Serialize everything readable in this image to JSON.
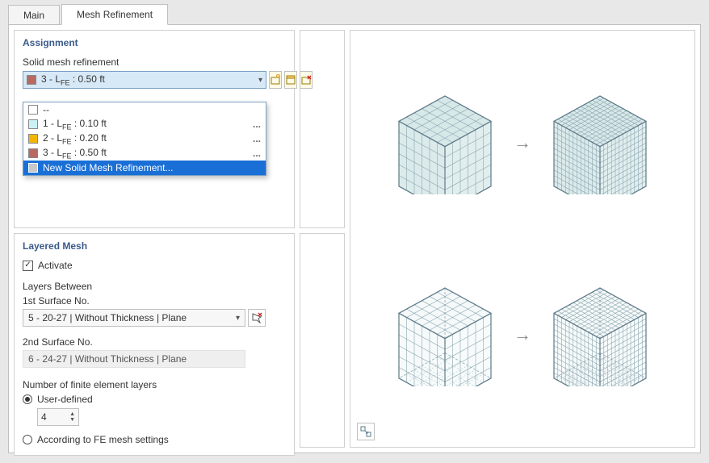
{
  "tabs": {
    "main": "Main",
    "mesh": "Mesh Refinement"
  },
  "assignment": {
    "title": "Assignment",
    "label": "Solid mesh refinement",
    "selected": {
      "text": "3 - L",
      "sub": "FE",
      "suffix": " : 0.50 ft",
      "swatch": "#b76a62"
    },
    "options": [
      {
        "text": "--",
        "swatch": "#ffffff",
        "dots": false
      },
      {
        "text": "1 - L",
        "sub": "FE",
        "suffix": " : 0.10 ft",
        "swatch": "#ccf1f4",
        "dots": true
      },
      {
        "text": "2 - L",
        "sub": "FE",
        "suffix": " : 0.20 ft",
        "swatch": "#f3b600",
        "dots": true
      },
      {
        "text": "3 - L",
        "sub": "FE",
        "suffix": " : 0.50 ft",
        "swatch": "#b76a62",
        "dots": true
      },
      {
        "text": "New Solid Mesh Refinement...",
        "swatch": "#c8c8c8",
        "highlight": true
      }
    ]
  },
  "layered": {
    "title": "Layered Mesh",
    "activate_label": "Activate",
    "activate_checked": true,
    "between_label": "Layers Between",
    "surf1_label": "1st Surface No.",
    "surf1_value": "5 - 20-27 | Without Thickness | Plane",
    "surf2_label": "2nd Surface No.",
    "surf2_value": "6 - 24-27 | Without Thickness | Plane",
    "layers_label": "Number of finite element layers",
    "radio_user": "User-defined",
    "radio_fe": "According to FE mesh settings",
    "radio_selected": "user",
    "layers_value": "4"
  },
  "colors": {
    "cube_fill": "#d7e8e8",
    "cube_stroke": "#5f7a8a",
    "grid_stroke": "#8ba7b0",
    "hidden_stroke": "#9fb7be"
  }
}
